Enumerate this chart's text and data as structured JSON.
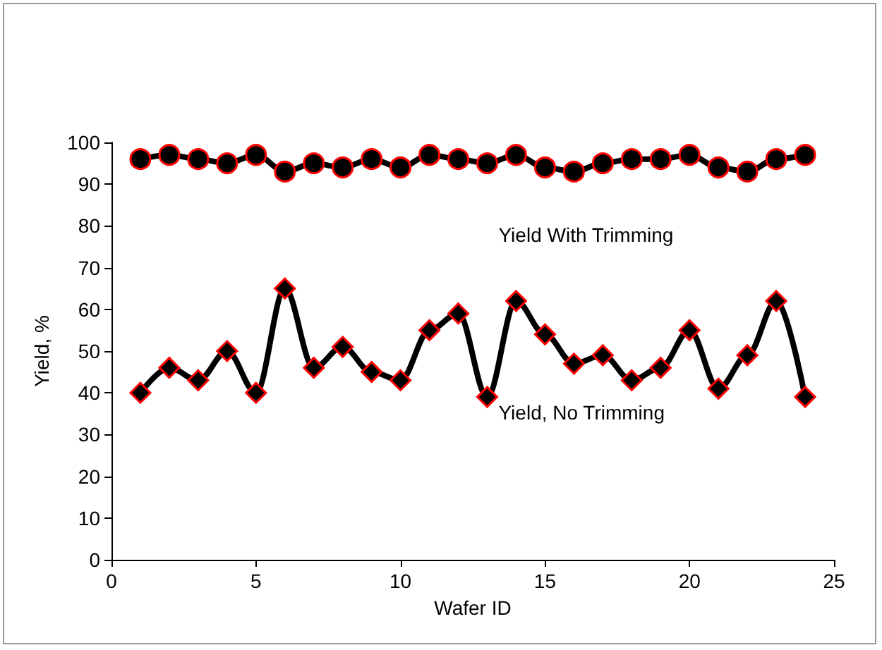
{
  "chart_data": {
    "type": "line",
    "xlabel": "Wafer ID",
    "ylabel": "Yield, %",
    "x": [
      1,
      2,
      3,
      4,
      5,
      6,
      7,
      8,
      9,
      10,
      11,
      12,
      13,
      14,
      15,
      16,
      17,
      18,
      19,
      20,
      21,
      22,
      23,
      24
    ],
    "series": [
      {
        "name": "Yield With Trimming",
        "color": "#000000",
        "marker": "circle",
        "values": [
          96,
          97,
          96,
          95,
          97,
          93,
          95,
          94,
          96,
          94,
          97,
          96,
          95,
          97,
          94,
          93,
          95,
          96,
          96,
          97,
          94,
          93,
          96,
          97
        ]
      },
      {
        "name": "Yield, No Trimming",
        "color": "#000000",
        "marker": "diamond",
        "values": [
          40,
          46,
          43,
          50,
          40,
          65,
          46,
          51,
          45,
          43,
          55,
          59,
          39,
          62,
          54,
          47,
          49,
          43,
          46,
          55,
          41,
          49,
          62,
          39
        ]
      }
    ],
    "xlim": [
      0,
      25
    ],
    "xticks": [
      0,
      5,
      10,
      15,
      20,
      25
    ],
    "ylim": [
      0,
      100
    ],
    "yticks": [
      0,
      10,
      20,
      30,
      40,
      50,
      60,
      70,
      80,
      90,
      100
    ],
    "grid": false,
    "legend": false,
    "line_style": "solid"
  }
}
